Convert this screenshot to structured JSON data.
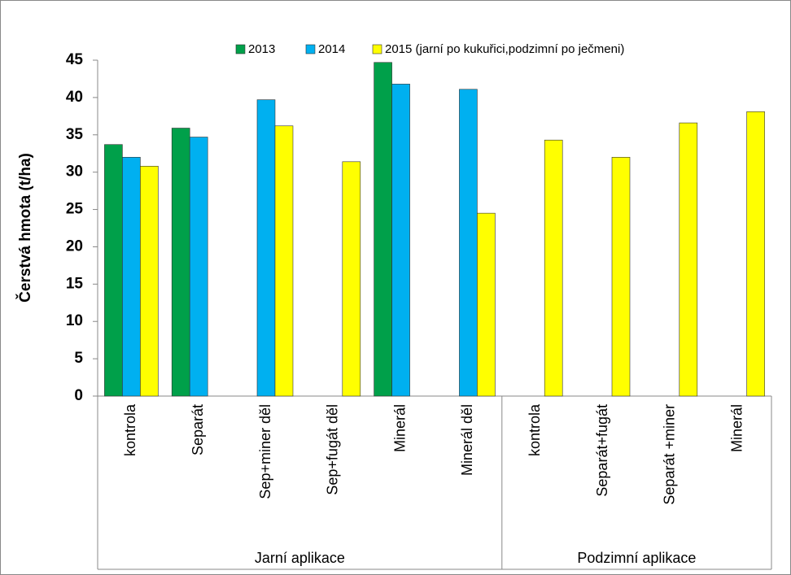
{
  "chart_data": {
    "type": "bar",
    "y_label": "Čerstvá hmota (t/ha)",
    "category_groups": [
      {
        "name": "Jarní aplikace",
        "categories": [
          "kontrola",
          "Separát",
          "Sep+miner děl",
          "Sep+fugát děl",
          "Minerál",
          "Minerál děl"
        ]
      },
      {
        "name": "Podzimní aplikace",
        "categories": [
          "kontrola",
          "Separát+fugát",
          "Separát +miner",
          "Minerál"
        ]
      }
    ],
    "series": [
      {
        "name": "2013",
        "color": "#00a04a",
        "values": [
          33.7,
          35.9,
          null,
          null,
          44.7,
          null,
          null,
          null,
          null,
          null
        ]
      },
      {
        "name": "2014",
        "color": "#00b0f0",
        "values": [
          32.0,
          34.7,
          39.7,
          null,
          41.8,
          41.1,
          null,
          null,
          null,
          null
        ]
      },
      {
        "name": "2015 (jarní po kukuřici,podzimní po ječmeni)",
        "color": "#ffff00",
        "values": [
          30.8,
          null,
          36.2,
          31.4,
          null,
          24.5,
          34.3,
          32.0,
          36.6,
          38.1
        ]
      }
    ],
    "ylim": [
      0,
      45
    ],
    "yticks": [
      0,
      5,
      10,
      15,
      20,
      25,
      30,
      35,
      40,
      45
    ],
    "grid": false,
    "legend": "top"
  }
}
